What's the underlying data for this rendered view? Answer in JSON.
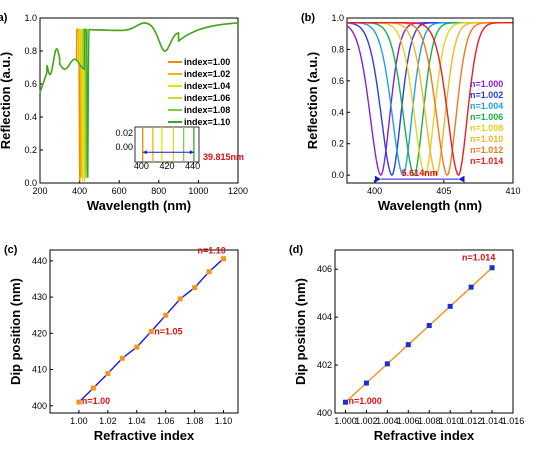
{
  "chart_data": [
    {
      "panel": "(a)",
      "type": "line",
      "xlabel": "Wavelength (nm)",
      "ylabel": "Reflection (a.u.)",
      "xlim": [
        200,
        1200
      ],
      "ylim": [
        0,
        1.0
      ],
      "xticks": [
        200,
        400,
        600,
        800,
        1000,
        1200
      ],
      "yticks": [
        0.0,
        0.2,
        0.4,
        0.6,
        0.8,
        1.0
      ],
      "legend_position": "right",
      "series": [
        {
          "name": "index=1.00",
          "color": "#f08a00",
          "dip": 401
        },
        {
          "name": "index=1.02",
          "color": "#f4b400",
          "dip": 409
        },
        {
          "name": "index=1.04",
          "color": "#e8e000",
          "dip": 416
        },
        {
          "name": "index=1.06",
          "color": "#d6d82a",
          "dip": 425
        },
        {
          "name": "index=1.08",
          "color": "#7ecf3a",
          "dip": 433
        },
        {
          "name": "index=1.10",
          "color": "#3aa52a",
          "dip": 441
        }
      ],
      "inset": {
        "xlim": [
          395,
          445
        ],
        "ylim": [
          -0.02,
          0.03
        ],
        "xticks": [
          400,
          420,
          440
        ],
        "yticks": [
          0.0,
          0.02
        ],
        "annotation": "39.815nm"
      }
    },
    {
      "panel": "(b)",
      "type": "line",
      "xlabel": "Wavelength (nm)",
      "ylabel": "Reflection (a.u.)",
      "xlim": [
        398,
        410
      ],
      "ylim": [
        -0.05,
        1.0
      ],
      "xticks": [
        400,
        405,
        410
      ],
      "yticks": [
        0.0,
        0.2,
        0.4,
        0.6,
        0.8,
        1.0
      ],
      "legend_position": "right",
      "annotation": "5.614nm",
      "series": [
        {
          "name": "n=1.000",
          "color": "#8a1fd6",
          "dip": 400.45
        },
        {
          "name": "n=1.002",
          "color": "#2a3fe0",
          "dip": 401.25
        },
        {
          "name": "n=1.004",
          "color": "#1f9fe6",
          "dip": 402.05
        },
        {
          "name": "n=1.006",
          "color": "#18b04a",
          "dip": 402.85
        },
        {
          "name": "n=1.008",
          "color": "#e6d21f",
          "dip": 403.65
        },
        {
          "name": "n=1.010",
          "color": "#f2b62a",
          "dip": 404.45
        },
        {
          "name": "n=1.012",
          "color": "#f07a1a",
          "dip": 405.25
        },
        {
          "name": "n=1.014",
          "color": "#e62020",
          "dip": 406.06
        }
      ]
    },
    {
      "panel": "(c)",
      "type": "scatter",
      "xlabel": "Refractive index",
      "ylabel": "Dip position (nm)",
      "xlim": [
        0.98,
        1.11
      ],
      "ylim": [
        398,
        443
      ],
      "xticks": [
        1.0,
        1.02,
        1.04,
        1.06,
        1.08,
        1.1
      ],
      "yticks": [
        400,
        410,
        420,
        430,
        440
      ],
      "x": [
        1.0,
        1.01,
        1.02,
        1.03,
        1.04,
        1.05,
        1.06,
        1.07,
        1.08,
        1.09,
        1.1
      ],
      "y": [
        401.0,
        404.9,
        408.9,
        413.1,
        416.2,
        420.5,
        425.0,
        429.5,
        432.6,
        437.0,
        440.6
      ],
      "marker_color": "#f7941d",
      "line_color": "#1a1adb",
      "annotations": [
        {
          "text": "n=1.00",
          "x": 1.0,
          "y": 401.0
        },
        {
          "text": "n=1.05",
          "x": 1.05,
          "y": 420.5
        },
        {
          "text": "n=1.10",
          "x": 1.1,
          "y": 440.6
        }
      ]
    },
    {
      "panel": "(d)",
      "type": "scatter",
      "xlabel": "Refractive index",
      "ylabel": "Dip position (nm)",
      "xlim": [
        0.999,
        1.016
      ],
      "ylim": [
        400,
        406.8
      ],
      "xticks": [
        1.0,
        1.002,
        1.004,
        1.006,
        1.008,
        1.01,
        1.012,
        1.014,
        1.016
      ],
      "yticks": [
        400,
        402,
        404,
        406
      ],
      "x": [
        1.0,
        1.002,
        1.004,
        1.006,
        1.008,
        1.01,
        1.012,
        1.014
      ],
      "y": [
        400.45,
        401.25,
        402.05,
        402.85,
        403.65,
        404.45,
        405.25,
        406.06
      ],
      "marker_color": "#1a2fd6",
      "line_color": "#f7941d",
      "annotations": [
        {
          "text": "n=1.000",
          "x": 1.0,
          "y": 400.45
        },
        {
          "text": "n=1.014",
          "x": 1.014,
          "y": 406.06
        }
      ]
    }
  ]
}
